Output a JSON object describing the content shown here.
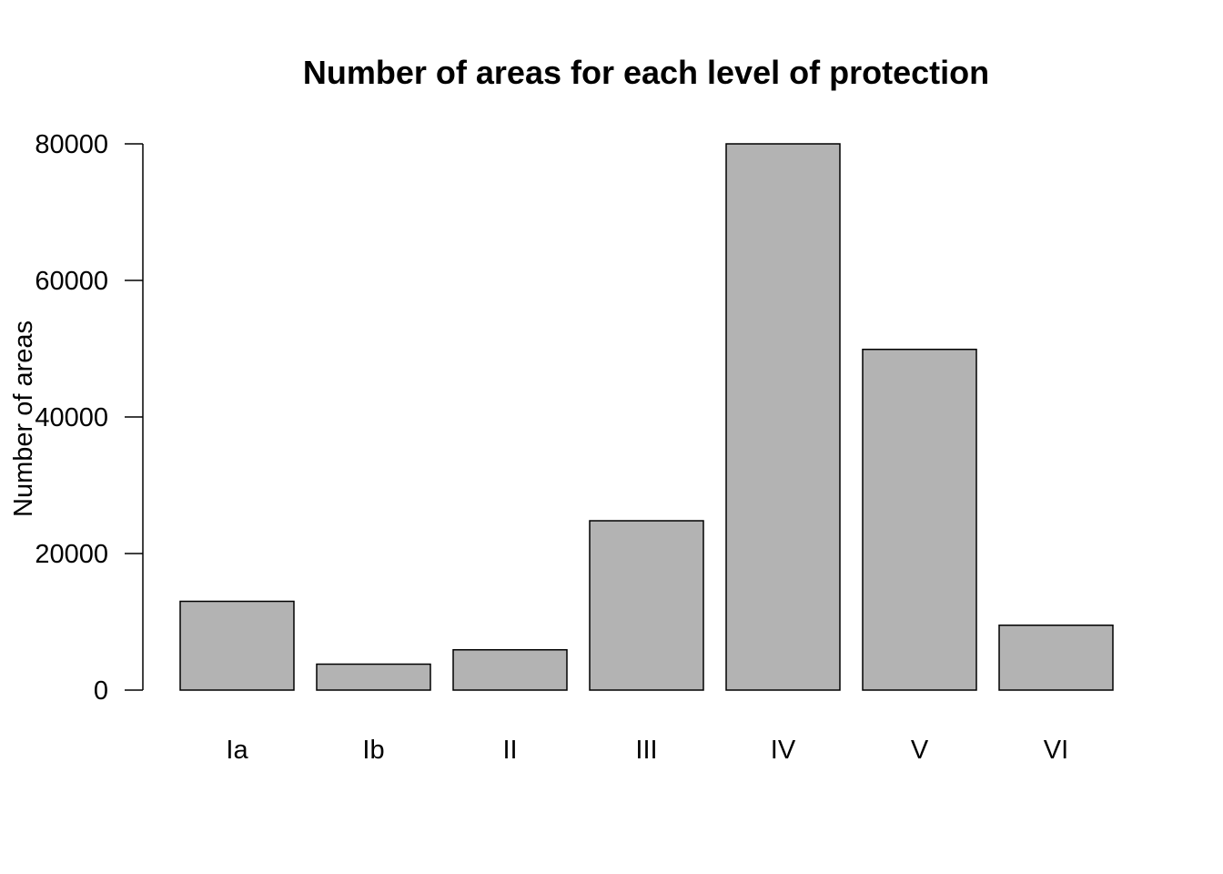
{
  "chart_data": {
    "type": "bar",
    "title": "Number of areas for each level of protection",
    "xlabel": "",
    "ylabel": "Number of areas",
    "categories": [
      "Ia",
      "Ib",
      "II",
      "III",
      "IV",
      "V",
      "VI"
    ],
    "values": [
      13000,
      3800,
      5900,
      24800,
      80000,
      49900,
      9500
    ],
    "ylim": [
      0,
      80000
    ],
    "yticks": [
      0,
      20000,
      40000,
      60000,
      80000
    ],
    "grid": false,
    "legend": "none",
    "bar_color": "#b3b3b3",
    "bar_border_color": "#000000"
  }
}
